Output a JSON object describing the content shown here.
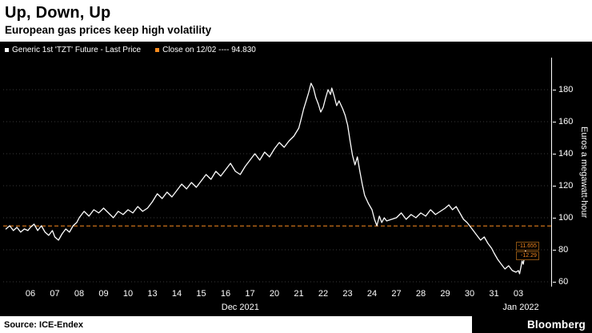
{
  "header": {
    "title": "Up, Down, Up",
    "subtitle": "European gas prices keep high volatility"
  },
  "legend": {
    "series1_label": "Generic 1st 'TZT' Future - Last Price",
    "series2_label": "Close on 12/02 ---- 94.830"
  },
  "annotations": {
    "change_abs": "-11.655",
    "change_pct": "-12.29"
  },
  "footer": {
    "source": "Source: ICE-Endex",
    "brand": "Bloomberg"
  },
  "colors": {
    "accent_orange": "#FB8B1E",
    "line_white": "#FFFFFF",
    "grid": "#3a3a3a",
    "background": "#000000",
    "header_bg": "#FFFFFF"
  },
  "chart_data": {
    "type": "line",
    "title": "Up, Down, Up",
    "subtitle": "European gas prices keep high volatility",
    "ylabel": "Euros a megawatt-hour",
    "legend_position": "top-left",
    "grid": "horizontal-dotted",
    "y_ticks": [
      60,
      80,
      100,
      120,
      140,
      160,
      180
    ],
    "ylim": [
      57,
      200
    ],
    "x_tick_labels": [
      "06",
      "07",
      "08",
      "09",
      "10",
      "13",
      "14",
      "15",
      "16",
      "17",
      "20",
      "21",
      "22",
      "23",
      "24",
      "27",
      "28",
      "29",
      "30",
      "31",
      "03"
    ],
    "x_month_labels": [
      {
        "label": "Dec 2021",
        "center_day": 8.6
      },
      {
        "label": "Jan 2022",
        "center_day": 20.1
      }
    ],
    "close_line": {
      "label": "Close on 12/02",
      "value": 94.83,
      "style": "dashed"
    },
    "last_price": 83.175,
    "series": [
      {
        "name": "Generic 1st 'TZT' Future - Last Price",
        "color": "#FFFFFF",
        "points": [
          [
            -1.0,
            93
          ],
          [
            -0.85,
            95
          ],
          [
            -0.7,
            92
          ],
          [
            -0.55,
            94
          ],
          [
            -0.4,
            91
          ],
          [
            -0.25,
            93
          ],
          [
            -0.1,
            92
          ],
          [
            0,
            94
          ],
          [
            0.15,
            96
          ],
          [
            0.3,
            92
          ],
          [
            0.45,
            95
          ],
          [
            0.6,
            91
          ],
          [
            0.75,
            89
          ],
          [
            0.9,
            92
          ],
          [
            1,
            88
          ],
          [
            1.15,
            86
          ],
          [
            1.3,
            90
          ],
          [
            1.45,
            93
          ],
          [
            1.6,
            91
          ],
          [
            1.75,
            95
          ],
          [
            1.9,
            97
          ],
          [
            2,
            100
          ],
          [
            2.2,
            104
          ],
          [
            2.4,
            101
          ],
          [
            2.6,
            105
          ],
          [
            2.8,
            103
          ],
          [
            3,
            106
          ],
          [
            3.2,
            103
          ],
          [
            3.4,
            100
          ],
          [
            3.6,
            104
          ],
          [
            3.8,
            102
          ],
          [
            4,
            105
          ],
          [
            4.2,
            103
          ],
          [
            4.4,
            107
          ],
          [
            4.6,
            104
          ],
          [
            4.8,
            106
          ],
          [
            5,
            110
          ],
          [
            5.2,
            115
          ],
          [
            5.4,
            112
          ],
          [
            5.6,
            116
          ],
          [
            5.8,
            113
          ],
          [
            6,
            117
          ],
          [
            6.2,
            121
          ],
          [
            6.4,
            118
          ],
          [
            6.6,
            122
          ],
          [
            6.8,
            119
          ],
          [
            7,
            123
          ],
          [
            7.2,
            127
          ],
          [
            7.4,
            124
          ],
          [
            7.6,
            129
          ],
          [
            7.8,
            126
          ],
          [
            8,
            130
          ],
          [
            8.2,
            134
          ],
          [
            8.4,
            129
          ],
          [
            8.6,
            127
          ],
          [
            8.8,
            132
          ],
          [
            9,
            136
          ],
          [
            9.2,
            140
          ],
          [
            9.4,
            136
          ],
          [
            9.6,
            141
          ],
          [
            9.8,
            138
          ],
          [
            10,
            143
          ],
          [
            10.2,
            147
          ],
          [
            10.4,
            144
          ],
          [
            10.6,
            148
          ],
          [
            10.8,
            151
          ],
          [
            11,
            156
          ],
          [
            11.1,
            162
          ],
          [
            11.2,
            168
          ],
          [
            11.3,
            173
          ],
          [
            11.4,
            178
          ],
          [
            11.5,
            184
          ],
          [
            11.6,
            181
          ],
          [
            11.7,
            175
          ],
          [
            11.8,
            171
          ],
          [
            11.9,
            166
          ],
          [
            12,
            169
          ],
          [
            12.1,
            175
          ],
          [
            12.2,
            180
          ],
          [
            12.3,
            177
          ],
          [
            12.35,
            181
          ],
          [
            12.45,
            176
          ],
          [
            12.55,
            170
          ],
          [
            12.65,
            173
          ],
          [
            12.8,
            168
          ],
          [
            12.9,
            164
          ],
          [
            13,
            158
          ],
          [
            13.1,
            148
          ],
          [
            13.2,
            139
          ],
          [
            13.3,
            133
          ],
          [
            13.4,
            138
          ],
          [
            13.5,
            129
          ],
          [
            13.6,
            121
          ],
          [
            13.7,
            114
          ],
          [
            13.85,
            109
          ],
          [
            14,
            105
          ],
          [
            14.1,
            99
          ],
          [
            14.2,
            95
          ],
          [
            14.3,
            101
          ],
          [
            14.4,
            97
          ],
          [
            14.5,
            100
          ],
          [
            14.6,
            98
          ],
          [
            15,
            100
          ],
          [
            15.2,
            103
          ],
          [
            15.4,
            99
          ],
          [
            15.6,
            102
          ],
          [
            15.8,
            100
          ],
          [
            16,
            103
          ],
          [
            16.2,
            101
          ],
          [
            16.4,
            105
          ],
          [
            16.6,
            102
          ],
          [
            16.8,
            104
          ],
          [
            17,
            106
          ],
          [
            17.15,
            108
          ],
          [
            17.3,
            105
          ],
          [
            17.45,
            107
          ],
          [
            17.6,
            103
          ],
          [
            17.75,
            99
          ],
          [
            17.9,
            97
          ],
          [
            18,
            95
          ],
          [
            18.15,
            92
          ],
          [
            18.3,
            89
          ],
          [
            18.45,
            86
          ],
          [
            18.6,
            88
          ],
          [
            18.75,
            84
          ],
          [
            18.9,
            81
          ],
          [
            19,
            78
          ],
          [
            19.15,
            74
          ],
          [
            19.3,
            71
          ],
          [
            19.45,
            68
          ],
          [
            19.6,
            70
          ],
          [
            19.75,
            67
          ],
          [
            19.9,
            66
          ],
          [
            20,
            67
          ],
          [
            20.05,
            65
          ],
          [
            20.1,
            69
          ],
          [
            20.15,
            73
          ],
          [
            20.2,
            71
          ],
          [
            20.25,
            76
          ],
          [
            20.3,
            80
          ],
          [
            20.35,
            83.175
          ]
        ]
      }
    ]
  }
}
